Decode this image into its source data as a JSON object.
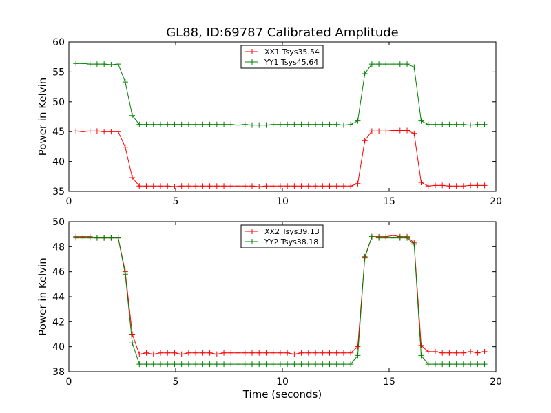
{
  "figure": {
    "title": "GL88, ID:69787 Calibrated Amplitude",
    "xlabel": "Time (seconds)"
  },
  "chart_data": [
    {
      "type": "line",
      "title": "GL88, ID:69787 Calibrated Amplitude",
      "xlabel": "",
      "ylabel": "Power in Kelvin",
      "xlim": [
        0,
        20
      ],
      "ylim": [
        35,
        60
      ],
      "xticks": [
        0,
        5,
        10,
        15,
        20
      ],
      "yticks": [
        35,
        40,
        45,
        50,
        55,
        60
      ],
      "grid": false,
      "legend_position": "top-center",
      "marker": "+",
      "x": [
        0.33,
        0.66,
        0.99,
        1.32,
        1.65,
        1.98,
        2.31,
        2.64,
        2.97,
        3.3,
        3.63,
        3.96,
        4.29,
        4.62,
        4.95,
        5.28,
        5.61,
        5.94,
        6.27,
        6.6,
        6.93,
        7.26,
        7.59,
        7.92,
        8.25,
        8.58,
        8.91,
        9.24,
        9.57,
        9.9,
        10.23,
        10.56,
        10.89,
        11.22,
        11.55,
        11.88,
        12.21,
        12.54,
        12.87,
        13.2,
        13.53,
        13.86,
        14.19,
        14.52,
        14.85,
        15.18,
        15.51,
        15.84,
        16.17,
        16.5,
        16.83,
        17.16,
        17.49,
        17.82,
        18.15,
        18.48,
        18.81,
        19.14,
        19.47
      ],
      "series": [
        {
          "name": "XX1 Tsys35.54",
          "color": "#ff0000",
          "values": [
            45.1,
            45.0,
            45.1,
            45.1,
            45.0,
            45.0,
            45.0,
            42.4,
            37.3,
            35.9,
            35.9,
            35.9,
            35.9,
            35.9,
            35.8,
            35.9,
            35.9,
            35.9,
            35.9,
            35.9,
            35.9,
            35.9,
            35.9,
            35.9,
            35.9,
            35.9,
            35.8,
            35.9,
            35.9,
            35.9,
            35.9,
            35.9,
            35.9,
            35.9,
            35.9,
            35.9,
            35.9,
            35.9,
            35.9,
            35.9,
            36.3,
            43.5,
            45.1,
            45.1,
            45.1,
            45.2,
            45.2,
            45.2,
            44.7,
            36.5,
            35.9,
            36.0,
            36.0,
            35.9,
            35.9,
            35.9,
            36.0,
            36.0,
            36.0
          ]
        },
        {
          "name": "YY1 Tsys45.64",
          "color": "#008000",
          "values": [
            56.4,
            56.4,
            56.3,
            56.3,
            56.3,
            56.2,
            56.3,
            53.3,
            47.7,
            46.2,
            46.2,
            46.2,
            46.2,
            46.2,
            46.2,
            46.2,
            46.2,
            46.2,
            46.2,
            46.2,
            46.2,
            46.2,
            46.2,
            46.1,
            46.2,
            46.1,
            46.1,
            46.1,
            46.2,
            46.2,
            46.2,
            46.2,
            46.2,
            46.2,
            46.2,
            46.2,
            46.2,
            46.2,
            46.1,
            46.2,
            46.8,
            54.7,
            56.3,
            56.3,
            56.3,
            56.3,
            56.3,
            56.3,
            55.8,
            46.8,
            46.2,
            46.2,
            46.2,
            46.2,
            46.2,
            46.2,
            46.1,
            46.2,
            46.2
          ]
        }
      ]
    },
    {
      "type": "line",
      "title": "",
      "xlabel": "Time (seconds)",
      "ylabel": "Power in Kelvin",
      "xlim": [
        0,
        20
      ],
      "ylim": [
        38,
        50
      ],
      "xticks": [
        0,
        5,
        10,
        15,
        20
      ],
      "yticks": [
        38,
        40,
        42,
        44,
        46,
        48,
        50
      ],
      "grid": false,
      "legend_position": "top-center",
      "marker": "+",
      "x": [
        0.33,
        0.66,
        0.99,
        1.32,
        1.65,
        1.98,
        2.31,
        2.64,
        2.97,
        3.3,
        3.63,
        3.96,
        4.29,
        4.62,
        4.95,
        5.28,
        5.61,
        5.94,
        6.27,
        6.6,
        6.93,
        7.26,
        7.59,
        7.92,
        8.25,
        8.58,
        8.91,
        9.24,
        9.57,
        9.9,
        10.23,
        10.56,
        10.89,
        11.22,
        11.55,
        11.88,
        12.21,
        12.54,
        12.87,
        13.2,
        13.53,
        13.86,
        14.19,
        14.52,
        14.85,
        15.18,
        15.51,
        15.84,
        16.17,
        16.5,
        16.83,
        17.16,
        17.49,
        17.82,
        18.15,
        18.48,
        18.81,
        19.14,
        19.47
      ],
      "series": [
        {
          "name": "XX2 Tsys39.13",
          "color": "#ff0000",
          "values": [
            48.8,
            48.8,
            48.8,
            48.7,
            48.7,
            48.7,
            48.7,
            46.0,
            41.0,
            39.4,
            39.5,
            39.4,
            39.5,
            39.5,
            39.5,
            39.4,
            39.5,
            39.5,
            39.5,
            39.5,
            39.4,
            39.5,
            39.5,
            39.5,
            39.5,
            39.5,
            39.5,
            39.5,
            39.5,
            39.5,
            39.5,
            39.4,
            39.5,
            39.5,
            39.5,
            39.5,
            39.5,
            39.5,
            39.5,
            39.5,
            40.0,
            47.1,
            48.8,
            48.8,
            48.8,
            48.9,
            48.8,
            48.8,
            48.3,
            40.1,
            39.6,
            39.6,
            39.5,
            39.5,
            39.5,
            39.5,
            39.6,
            39.5,
            39.6
          ]
        },
        {
          "name": "YY2 Tsys38.18",
          "color": "#008000",
          "values": [
            48.7,
            48.7,
            48.7,
            48.7,
            48.7,
            48.7,
            48.7,
            45.8,
            40.3,
            38.6,
            38.6,
            38.6,
            38.6,
            38.6,
            38.6,
            38.6,
            38.6,
            38.6,
            38.6,
            38.6,
            38.6,
            38.6,
            38.6,
            38.6,
            38.6,
            38.6,
            38.6,
            38.6,
            38.6,
            38.6,
            38.6,
            38.6,
            38.6,
            38.6,
            38.6,
            38.6,
            38.6,
            38.6,
            38.6,
            38.6,
            39.3,
            47.2,
            48.8,
            48.7,
            48.7,
            48.7,
            48.7,
            48.7,
            48.2,
            39.3,
            38.6,
            38.6,
            38.6,
            38.6,
            38.6,
            38.6,
            38.6,
            38.6,
            38.6
          ]
        }
      ]
    }
  ]
}
